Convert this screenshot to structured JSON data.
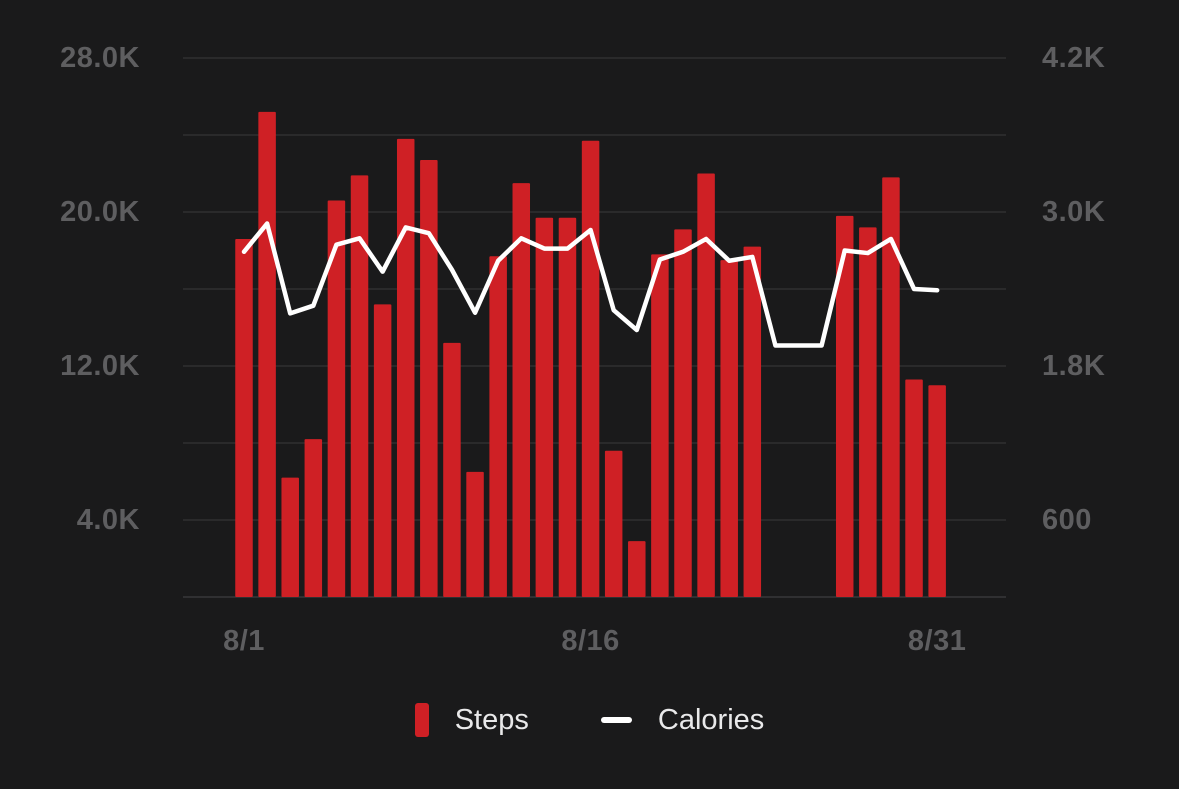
{
  "legend": {
    "steps_label": "Steps",
    "calories_label": "Calories"
  },
  "colors": {
    "background": "#1a1a1b",
    "bar": "#cf2025",
    "line": "#ffffff",
    "grid": "#2f2f31",
    "baseline": "#303032",
    "axis_label": "#5e5e60",
    "legend_text": "#e9e9ea"
  },
  "chart_data": {
    "type": "bar",
    "categories": [
      "8/1",
      "8/2",
      "8/3",
      "8/4",
      "8/5",
      "8/6",
      "8/7",
      "8/8",
      "8/9",
      "8/10",
      "8/11",
      "8/12",
      "8/13",
      "8/14",
      "8/15",
      "8/16",
      "8/17",
      "8/18",
      "8/19",
      "8/20",
      "8/21",
      "8/22",
      "8/23",
      "8/24",
      "8/25",
      "8/26",
      "8/27",
      "8/28",
      "8/29",
      "8/30",
      "8/31"
    ],
    "series": [
      {
        "name": "Steps",
        "type": "bar",
        "axis": "left",
        "color": "#cf2025",
        "values": [
          18600,
          25200,
          6200,
          8200,
          20600,
          21900,
          15200,
          23800,
          22700,
          13200,
          6500,
          17700,
          21500,
          19700,
          19700,
          23700,
          7600,
          2900,
          17800,
          19100,
          22000,
          17500,
          18200,
          0,
          0,
          0,
          19800,
          19200,
          21800,
          11300,
          11000
        ]
      },
      {
        "name": "Calories",
        "type": "line",
        "axis": "right",
        "color": "#ffffff",
        "values": [
          2690,
          2910,
          2210,
          2270,
          2745,
          2795,
          2535,
          2880,
          2835,
          2550,
          2215,
          2620,
          2795,
          2715,
          2715,
          2860,
          2235,
          2080,
          2630,
          2690,
          2790,
          2620,
          2650,
          1960,
          1960,
          1960,
          2700,
          2680,
          2790,
          2400,
          2390
        ]
      }
    ],
    "left_axis": {
      "series": "Steps",
      "range": [
        0,
        28000
      ],
      "tick_labels": [
        "28.0K",
        "20.0K",
        "12.0K",
        "4.0K"
      ],
      "tick_values": [
        28000,
        20000,
        12000,
        4000
      ],
      "grid_values": [
        28000,
        24000,
        20000,
        16000,
        12000,
        8000,
        4000
      ]
    },
    "right_axis": {
      "series": "Calories",
      "range": [
        0,
        4200
      ],
      "tick_labels": [
        "4.2K",
        "3.0K",
        "1.8K",
        "600"
      ],
      "tick_values": [
        4200,
        3000,
        1800,
        600
      ]
    },
    "x_axis": {
      "tick_labels": [
        "8/1",
        "8/16",
        "8/31"
      ],
      "tick_indices": [
        0,
        15,
        30
      ]
    },
    "grid": true,
    "legend_position": "bottom"
  }
}
